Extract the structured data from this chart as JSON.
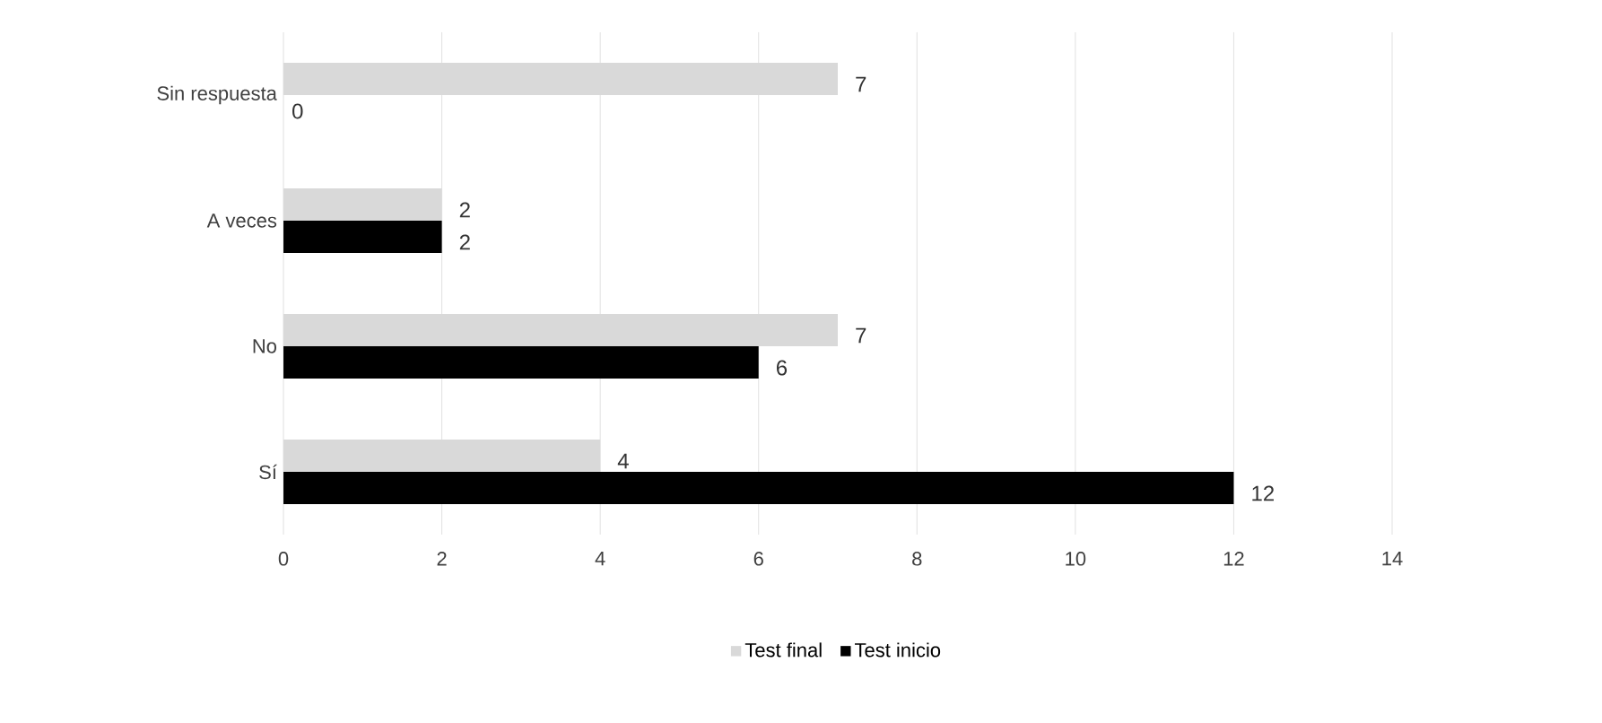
{
  "chart_data": {
    "type": "bar",
    "orientation": "horizontal",
    "categories": [
      "Sin respuesta",
      "A veces",
      "No",
      "Sí"
    ],
    "series": [
      {
        "name": "Test final",
        "color": "#d9d9d9",
        "values": [
          7,
          2,
          7,
          4
        ]
      },
      {
        "name": "Test inicio",
        "color": "#000000",
        "values": [
          0,
          2,
          6,
          12
        ]
      }
    ],
    "xlim": [
      0,
      14
    ],
    "xticks": [
      0,
      2,
      4,
      6,
      8,
      10,
      12,
      14
    ],
    "grid": "x",
    "legend": "bottom",
    "data_labels": true
  }
}
